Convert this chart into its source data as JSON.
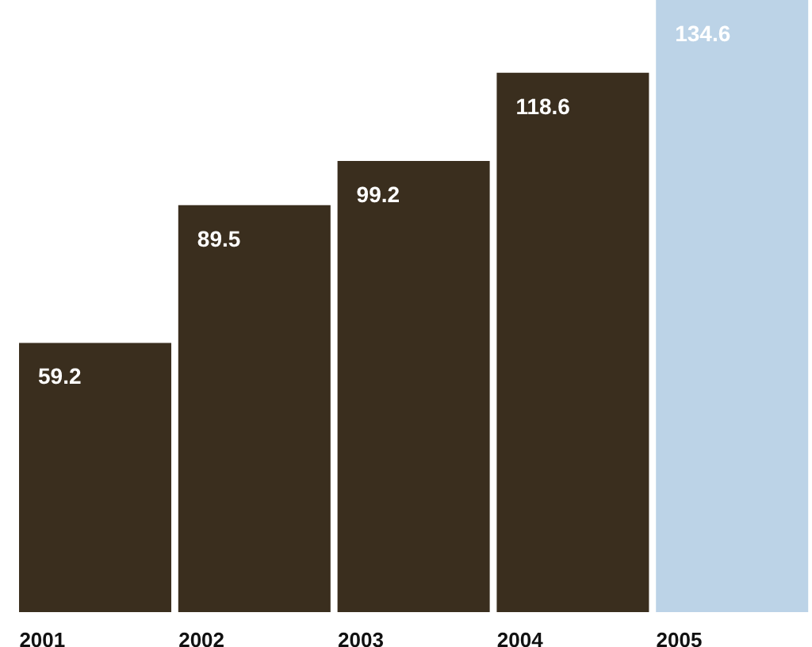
{
  "chart_data": {
    "type": "bar",
    "categories": [
      "2001",
      "2002",
      "2003",
      "2004",
      "2005"
    ],
    "values": [
      59.2,
      89.5,
      99.2,
      118.6,
      134.6
    ],
    "colors": [
      "#3a2e1e",
      "#3a2e1e",
      "#3a2e1e",
      "#3a2e1e",
      "#bcd3e7"
    ],
    "data_labels": true,
    "grid": false,
    "legend": false
  }
}
